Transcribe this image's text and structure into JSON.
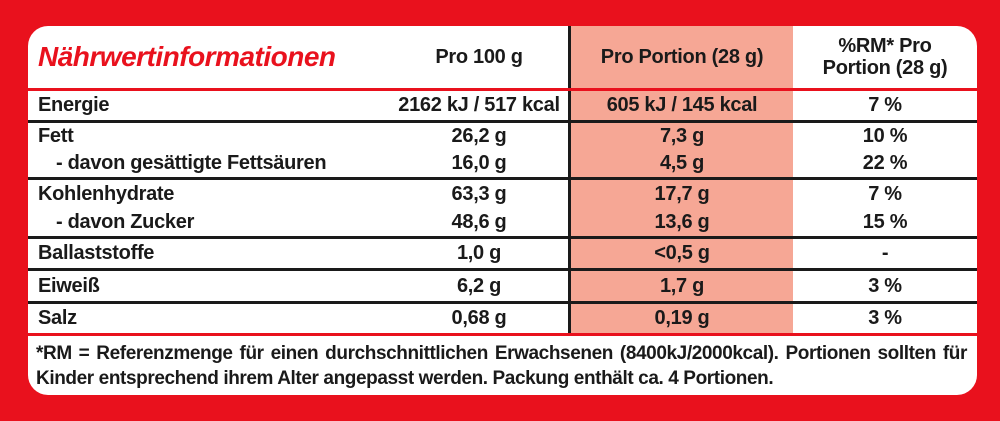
{
  "colors": {
    "frame_red": "#e9111d",
    "portion_highlight": "#f6a795",
    "text_black": "#1a1a1a",
    "panel_white": "#ffffff"
  },
  "header": {
    "title": "Nährwertinformationen",
    "col_per_100g": "Pro 100 g",
    "col_per_portion": "Pro Portion (28 g)",
    "col_rm_lines": [
      "%RM* Pro",
      "Portion (28 g)"
    ]
  },
  "rows": [
    {
      "label": "Energie",
      "per100": "2162 kJ / 517 kcal",
      "portion": "605 kJ / 145 kcal",
      "rm": "7 %"
    },
    {
      "label": "Fett",
      "per100": "26,2 g",
      "portion": "7,3 g",
      "rm": "10 %"
    },
    {
      "label": "- davon gesättigte Fettsäuren",
      "per100": "16,0 g",
      "portion": "4,5 g",
      "rm": "22 %"
    },
    {
      "label": "Kohlenhydrate",
      "per100": "63,3 g",
      "portion": "17,7 g",
      "rm": "7 %"
    },
    {
      "label": "- davon Zucker",
      "per100": "48,6 g",
      "portion": "13,6 g",
      "rm": "15 %"
    },
    {
      "label": "Ballaststoffe",
      "per100": "1,0 g",
      "portion": "<0,5 g",
      "rm": "-"
    },
    {
      "label": "Eiweiß",
      "per100": "6,2 g",
      "portion": "1,7 g",
      "rm": "3 %"
    },
    {
      "label": "Salz",
      "per100": "0,68 g",
      "portion": "0,19 g",
      "rm": "3 %"
    }
  ],
  "footnote": "*RM = Referenzmenge für einen durchschnittlichen Erwachsenen (8400kJ/2000kcal). Portionen sollten für Kinder entsprechend ihrem Alter angepasst werden. Packung enthält ca. 4 Portionen."
}
